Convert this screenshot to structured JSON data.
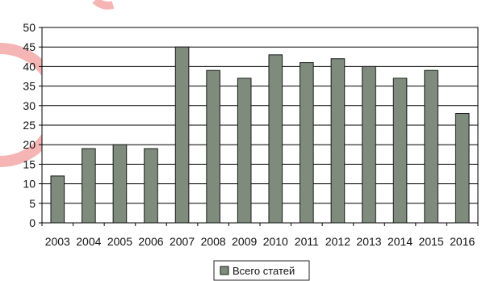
{
  "chart_data": {
    "type": "bar",
    "categories": [
      "2003",
      "2004",
      "2005",
      "2006",
      "2007",
      "2008",
      "2009",
      "2010",
      "2011",
      "2012",
      "2013",
      "2014",
      "2015",
      "2016"
    ],
    "series": [
      {
        "name": "Всего статей",
        "values": [
          12,
          19,
          20,
          19,
          45,
          39,
          37,
          43,
          41,
          42,
          40,
          37,
          39,
          28
        ]
      }
    ],
    "title": "",
    "xlabel": "",
    "ylabel": "",
    "ylim": [
      0,
      50
    ],
    "yticks": [
      "0",
      "5",
      "10",
      "15",
      "20",
      "25",
      "30",
      "35",
      "40",
      "45",
      "50"
    ],
    "grid": true,
    "legend": "bottom-center",
    "colors": {
      "bar": "#7f8c7d",
      "bar_stroke": "#1a1a1a",
      "grid": "#000000",
      "background": "#ffffff",
      "decoration": "#f5b5b5"
    }
  }
}
